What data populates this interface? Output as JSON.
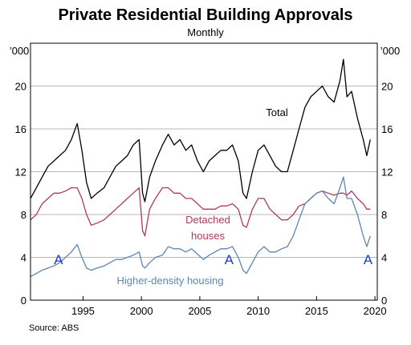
{
  "chart_data": {
    "type": "line",
    "title": "Private Residential Building Approvals",
    "subtitle": "Monthly",
    "unit_left": "’000",
    "unit_right": "’000",
    "source": "Source:   ABS",
    "xlim": [
      1990.5,
      2020.2
    ],
    "ylim": [
      0,
      24
    ],
    "x_ticks": [
      1995,
      2000,
      2005,
      2010,
      2015,
      2020
    ],
    "y_ticks": [
      0,
      4,
      8,
      12,
      16,
      20
    ],
    "grid": true,
    "colors": {
      "total": "#000000",
      "detached": "#b03a5b",
      "higher": "#5b86b5",
      "marker": "#1f3fbf"
    },
    "series": [
      {
        "name": "Total",
        "label": "Total",
        "color": "#000000",
        "x": [
          1990.5,
          1991.0,
          1991.5,
          1992.0,
          1992.5,
          1993.0,
          1993.5,
          1994.0,
          1994.5,
          1994.9,
          1995.3,
          1995.7,
          1996.2,
          1996.8,
          1997.3,
          1997.8,
          1998.3,
          1998.8,
          1999.3,
          1999.8,
          2000.1,
          2000.3,
          2000.7,
          2001.2,
          2001.8,
          2002.3,
          2002.8,
          2003.3,
          2003.8,
          2004.3,
          2004.8,
          2005.3,
          2005.8,
          2006.3,
          2006.8,
          2007.3,
          2007.8,
          2008.3,
          2008.7,
          2009.0,
          2009.5,
          2010.0,
          2010.5,
          2011.0,
          2011.5,
          2012.0,
          2012.5,
          2013.0,
          2013.5,
          2014.0,
          2014.5,
          2015.0,
          2015.5,
          2016.0,
          2016.5,
          2017.0,
          2017.3,
          2017.6,
          2018.0,
          2018.5,
          2019.0,
          2019.3,
          2019.6
        ],
        "values": [
          9.5,
          10.5,
          11.5,
          12.5,
          13.0,
          13.5,
          14.0,
          15.0,
          16.5,
          14.0,
          11.0,
          9.5,
          10.0,
          10.5,
          11.5,
          12.5,
          13.0,
          13.5,
          14.5,
          15.0,
          10.0,
          9.2,
          11.5,
          13.0,
          14.5,
          15.5,
          14.5,
          15.0,
          14.0,
          14.5,
          13.0,
          12.0,
          13.0,
          13.5,
          14.0,
          14.0,
          14.5,
          13.0,
          10.0,
          9.5,
          12.0,
          14.0,
          14.5,
          13.5,
          12.5,
          12.0,
          12.0,
          14.0,
          16.0,
          18.0,
          19.0,
          19.5,
          20.0,
          19.0,
          18.5,
          20.5,
          22.5,
          19.0,
          19.5,
          17.0,
          15.0,
          13.5,
          15.0
        ]
      },
      {
        "name": "Detached houses",
        "label": [
          "Detached",
          "houses"
        ],
        "color": "#b03a5b",
        "x": [
          1990.5,
          1991.0,
          1991.5,
          1992.0,
          1992.5,
          1993.0,
          1993.5,
          1994.0,
          1994.5,
          1994.9,
          1995.3,
          1995.7,
          1996.2,
          1996.8,
          1997.3,
          1997.8,
          1998.3,
          1998.8,
          1999.3,
          1999.8,
          2000.1,
          2000.3,
          2000.7,
          2001.2,
          2001.8,
          2002.3,
          2002.8,
          2003.3,
          2003.8,
          2004.3,
          2004.8,
          2005.3,
          2005.8,
          2006.3,
          2006.8,
          2007.3,
          2007.8,
          2008.3,
          2008.7,
          2009.0,
          2009.5,
          2010.0,
          2010.5,
          2011.0,
          2011.5,
          2012.0,
          2012.5,
          2013.0,
          2013.5,
          2014.0,
          2014.5,
          2015.0,
          2015.5,
          2016.0,
          2016.5,
          2017.0,
          2017.3,
          2017.6,
          2018.0,
          2018.5,
          2019.0,
          2019.3,
          2019.6
        ],
        "values": [
          7.5,
          8.0,
          9.0,
          9.5,
          10.0,
          10.0,
          10.2,
          10.5,
          10.5,
          9.5,
          8.0,
          7.0,
          7.2,
          7.5,
          8.0,
          8.5,
          9.0,
          9.5,
          10.0,
          10.5,
          6.5,
          6.0,
          8.5,
          9.5,
          10.5,
          10.5,
          10.0,
          10.0,
          9.5,
          9.5,
          9.0,
          8.5,
          8.5,
          8.5,
          8.8,
          8.8,
          9.0,
          8.5,
          7.0,
          6.8,
          8.5,
          9.5,
          9.5,
          8.5,
          8.0,
          7.5,
          7.5,
          8.0,
          8.8,
          9.0,
          9.5,
          10.0,
          10.2,
          10.0,
          9.8,
          10.0,
          10.0,
          9.8,
          10.2,
          9.5,
          9.0,
          8.5,
          8.5
        ]
      },
      {
        "name": "Higher-density housing",
        "label": "Higher-density housing",
        "color": "#5b86b5",
        "x": [
          1990.5,
          1991.0,
          1991.5,
          1992.0,
          1992.5,
          1993.0,
          1993.5,
          1994.0,
          1994.5,
          1994.9,
          1995.3,
          1995.7,
          1996.2,
          1996.8,
          1997.3,
          1997.8,
          1998.3,
          1998.8,
          1999.3,
          1999.8,
          2000.1,
          2000.3,
          2000.7,
          2001.2,
          2001.8,
          2002.3,
          2002.8,
          2003.3,
          2003.8,
          2004.3,
          2004.8,
          2005.3,
          2005.8,
          2006.3,
          2006.8,
          2007.3,
          2007.8,
          2008.3,
          2008.7,
          2009.0,
          2009.5,
          2010.0,
          2010.5,
          2011.0,
          2011.5,
          2012.0,
          2012.5,
          2013.0,
          2013.5,
          2014.0,
          2014.5,
          2015.0,
          2015.5,
          2016.0,
          2016.5,
          2017.0,
          2017.3,
          2017.6,
          2018.0,
          2018.5,
          2019.0,
          2019.3,
          2019.6
        ],
        "values": [
          2.2,
          2.5,
          2.8,
          3.0,
          3.2,
          3.5,
          4.0,
          4.5,
          5.2,
          4.0,
          3.0,
          2.8,
          3.0,
          3.2,
          3.5,
          3.8,
          3.8,
          4.0,
          4.2,
          4.5,
          3.2,
          3.0,
          3.5,
          4.0,
          4.2,
          5.0,
          4.8,
          4.8,
          4.5,
          4.8,
          4.3,
          3.8,
          4.2,
          4.5,
          4.8,
          4.8,
          5.0,
          4.0,
          2.8,
          2.5,
          3.5,
          4.5,
          5.0,
          4.5,
          4.5,
          4.8,
          5.0,
          6.0,
          7.5,
          9.0,
          9.5,
          10.0,
          10.2,
          9.5,
          9.0,
          10.5,
          11.5,
          9.5,
          9.5,
          8.0,
          6.0,
          5.0,
          6.0
        ]
      }
    ],
    "annotations": [
      {
        "text": "A",
        "x": 1992.9,
        "y": 3.8
      },
      {
        "text": "A",
        "x": 2007.5,
        "y": 3.8
      },
      {
        "text": "A",
        "x": 2019.4,
        "y": 3.8
      }
    ]
  }
}
